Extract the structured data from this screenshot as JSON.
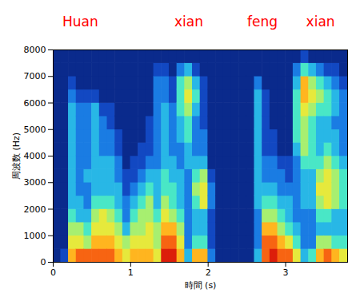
{
  "chart_data": {
    "type": "heatmap",
    "x_label": "時間 (s)",
    "y_label": "周波数 (Hz)",
    "xlim": [
      0,
      3.8
    ],
    "xticks": [
      0,
      1,
      2,
      3
    ],
    "ylim": [
      0,
      8000
    ],
    "yticks": [
      0,
      1000,
      2000,
      3000,
      4000,
      5000,
      6000,
      7000,
      8000
    ],
    "zlim": [
      0,
      9
    ],
    "annotations": [
      {
        "text": "Huan",
        "x": 0.35
      },
      {
        "text": "xian",
        "x": 1.75
      },
      {
        "text": "feng",
        "x": 2.7
      },
      {
        "text": "xian",
        "x": 3.45
      }
    ],
    "x_bins": [
      0,
      0.1,
      0.2,
      0.3,
      0.4,
      0.5,
      0.6,
      0.7,
      0.8,
      0.9,
      1.0,
      1.1,
      1.2,
      1.3,
      1.4,
      1.5,
      1.6,
      1.7,
      1.8,
      1.9,
      2.0,
      2.1,
      2.2,
      2.3,
      2.4,
      2.5,
      2.6,
      2.7,
      2.8,
      2.9,
      3.0,
      3.1,
      3.2,
      3.3,
      3.4,
      3.5,
      3.6,
      3.7,
      3.8
    ],
    "y_bins": [
      0,
      500,
      1000,
      1500,
      2000,
      2500,
      3000,
      3500,
      4000,
      4500,
      5000,
      5500,
      6000,
      6500,
      7000,
      7500,
      8000
    ],
    "z": [
      [
        0,
        0,
        0,
        0,
        0,
        0,
        0,
        0,
        0,
        0,
        0,
        0,
        0,
        0,
        0,
        0
      ],
      [
        1,
        0,
        0,
        0,
        0,
        0,
        0,
        0,
        0,
        0,
        0,
        0,
        0,
        0,
        0,
        0
      ],
      [
        7,
        6,
        5,
        4,
        3,
        3,
        3,
        3,
        3,
        3,
        3,
        3,
        2,
        1,
        0,
        0
      ],
      [
        8,
        6,
        5,
        3,
        3,
        2,
        2,
        2,
        2,
        2,
        2,
        2,
        1,
        0,
        0,
        0
      ],
      [
        8,
        5,
        4,
        3,
        2,
        2,
        3,
        2,
        2,
        2,
        2,
        2,
        1,
        0,
        0,
        0
      ],
      [
        8,
        7,
        6,
        5,
        4,
        3,
        3,
        3,
        3,
        3,
        3,
        3,
        1,
        0,
        0,
        0
      ],
      [
        8,
        7,
        6,
        6,
        4,
        3,
        3,
        3,
        2,
        2,
        2,
        1,
        0,
        0,
        0,
        0
      ],
      [
        8,
        7,
        6,
        5,
        4,
        3,
        3,
        3,
        2,
        2,
        1,
        1,
        0,
        0,
        0,
        0
      ],
      [
        7,
        6,
        5,
        4,
        3,
        3,
        2,
        2,
        1,
        1,
        0,
        0,
        0,
        0,
        0,
        0
      ],
      [
        6,
        5,
        3,
        2,
        2,
        1,
        1,
        0,
        0,
        0,
        0,
        0,
        0,
        0,
        0,
        0
      ],
      [
        7,
        6,
        5,
        4,
        3,
        2,
        1,
        1,
        0,
        0,
        0,
        0,
        0,
        0,
        0,
        0
      ],
      [
        7,
        6,
        5,
        5,
        4,
        3,
        2,
        1,
        1,
        0,
        0,
        0,
        0,
        0,
        0,
        0
      ],
      [
        7,
        6,
        6,
        5,
        5,
        4,
        3,
        2,
        1,
        1,
        1,
        0,
        0,
        0,
        0,
        0
      ],
      [
        6,
        5,
        5,
        4,
        3,
        3,
        3,
        2,
        2,
        2,
        2,
        2,
        2,
        2,
        1,
        0
      ],
      [
        9,
        8,
        7,
        6,
        5,
        4,
        4,
        3,
        3,
        3,
        3,
        3,
        2,
        2,
        1,
        0
      ],
      [
        9,
        8,
        7,
        5,
        4,
        4,
        3,
        3,
        2,
        2,
        2,
        2,
        1,
        1,
        0,
        0
      ],
      [
        7,
        6,
        5,
        4,
        3,
        3,
        3,
        2,
        2,
        3,
        3,
        4,
        4,
        4,
        2,
        0
      ],
      [
        3,
        2,
        2,
        2,
        2,
        2,
        2,
        3,
        3,
        4,
        4,
        5,
        6,
        5,
        3,
        0
      ],
      [
        7,
        4,
        3,
        3,
        4,
        5,
        4,
        3,
        2,
        2,
        2,
        3,
        4,
        3,
        1,
        0
      ],
      [
        7,
        4,
        3,
        3,
        6,
        6,
        5,
        3,
        2,
        2,
        1,
        1,
        1,
        1,
        0,
        0
      ],
      [
        2,
        1,
        1,
        1,
        2,
        2,
        1,
        0,
        0,
        0,
        0,
        0,
        0,
        0,
        0,
        0
      ],
      [
        0,
        0,
        0,
        0,
        0,
        0,
        0,
        0,
        0,
        0,
        0,
        0,
        0,
        0,
        0,
        0
      ],
      [
        0,
        0,
        0,
        0,
        0,
        0,
        0,
        0,
        0,
        0,
        0,
        0,
        0,
        0,
        0,
        0
      ],
      [
        0,
        0,
        0,
        0,
        0,
        0,
        0,
        0,
        0,
        0,
        0,
        0,
        0,
        0,
        0,
        0
      ],
      [
        0,
        0,
        0,
        0,
        0,
        0,
        0,
        0,
        0,
        0,
        0,
        0,
        0,
        0,
        0,
        0
      ],
      [
        0,
        0,
        0,
        0,
        0,
        0,
        0,
        0,
        0,
        0,
        0,
        0,
        0,
        0,
        0,
        0
      ],
      [
        3,
        2,
        2,
        2,
        3,
        3,
        3,
        3,
        3,
        3,
        3,
        3,
        3,
        2,
        0,
        0
      ],
      [
        8,
        8,
        7,
        5,
        4,
        3,
        2,
        2,
        1,
        1,
        1,
        1,
        1,
        0,
        0,
        0
      ],
      [
        9,
        8,
        7,
        5,
        4,
        3,
        2,
        2,
        1,
        1,
        0,
        0,
        0,
        0,
        0,
        0
      ],
      [
        8,
        7,
        5,
        4,
        3,
        2,
        2,
        1,
        0,
        0,
        0,
        0,
        0,
        0,
        0,
        0
      ],
      [
        8,
        6,
        4,
        3,
        3,
        2,
        1,
        1,
        0,
        0,
        0,
        0,
        0,
        0,
        0,
        0
      ],
      [
        6,
        4,
        3,
        2,
        2,
        2,
        2,
        2,
        3,
        4,
        4,
        4,
        4,
        3,
        2,
        0
      ],
      [
        3,
        2,
        2,
        2,
        3,
        3,
        3,
        4,
        5,
        5,
        5,
        6,
        7,
        7,
        4,
        1
      ],
      [
        4,
        2,
        2,
        2,
        3,
        3,
        3,
        4,
        4,
        4,
        4,
        5,
        6,
        5,
        3,
        0
      ],
      [
        7,
        5,
        3,
        4,
        5,
        6,
        5,
        4,
        3,
        3,
        3,
        4,
        5,
        4,
        2,
        0
      ],
      [
        8,
        5,
        3,
        4,
        6,
        6,
        6,
        5,
        4,
        3,
        3,
        4,
        4,
        3,
        1,
        0
      ],
      [
        7,
        4,
        3,
        3,
        5,
        5,
        5,
        4,
        3,
        3,
        2,
        3,
        3,
        2,
        1,
        0
      ],
      [
        6,
        4,
        3,
        3,
        4,
        4,
        4,
        3,
        2,
        2,
        2,
        2,
        2,
        1,
        0,
        0
      ]
    ]
  }
}
